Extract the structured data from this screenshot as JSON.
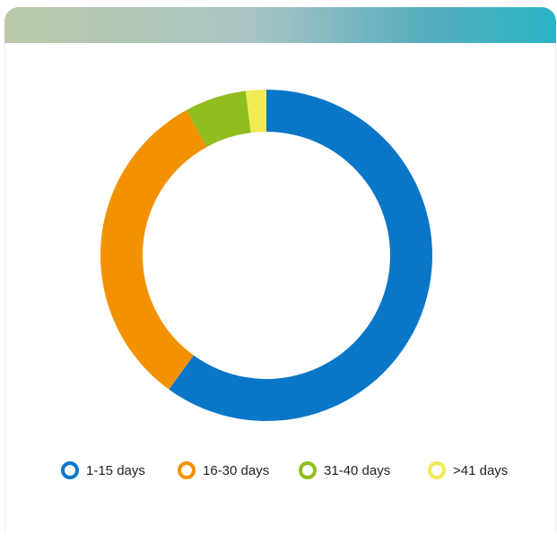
{
  "chart_data": {
    "type": "pie",
    "categories": [
      "1-15 days",
      "16-30 days",
      "31-40 days",
      ">41 days"
    ],
    "values": [
      60,
      32,
      6,
      2
    ],
    "colors": [
      "#0a76c8",
      "#f39200",
      "#8fbe1e",
      "#f2ea55"
    ]
  }
}
